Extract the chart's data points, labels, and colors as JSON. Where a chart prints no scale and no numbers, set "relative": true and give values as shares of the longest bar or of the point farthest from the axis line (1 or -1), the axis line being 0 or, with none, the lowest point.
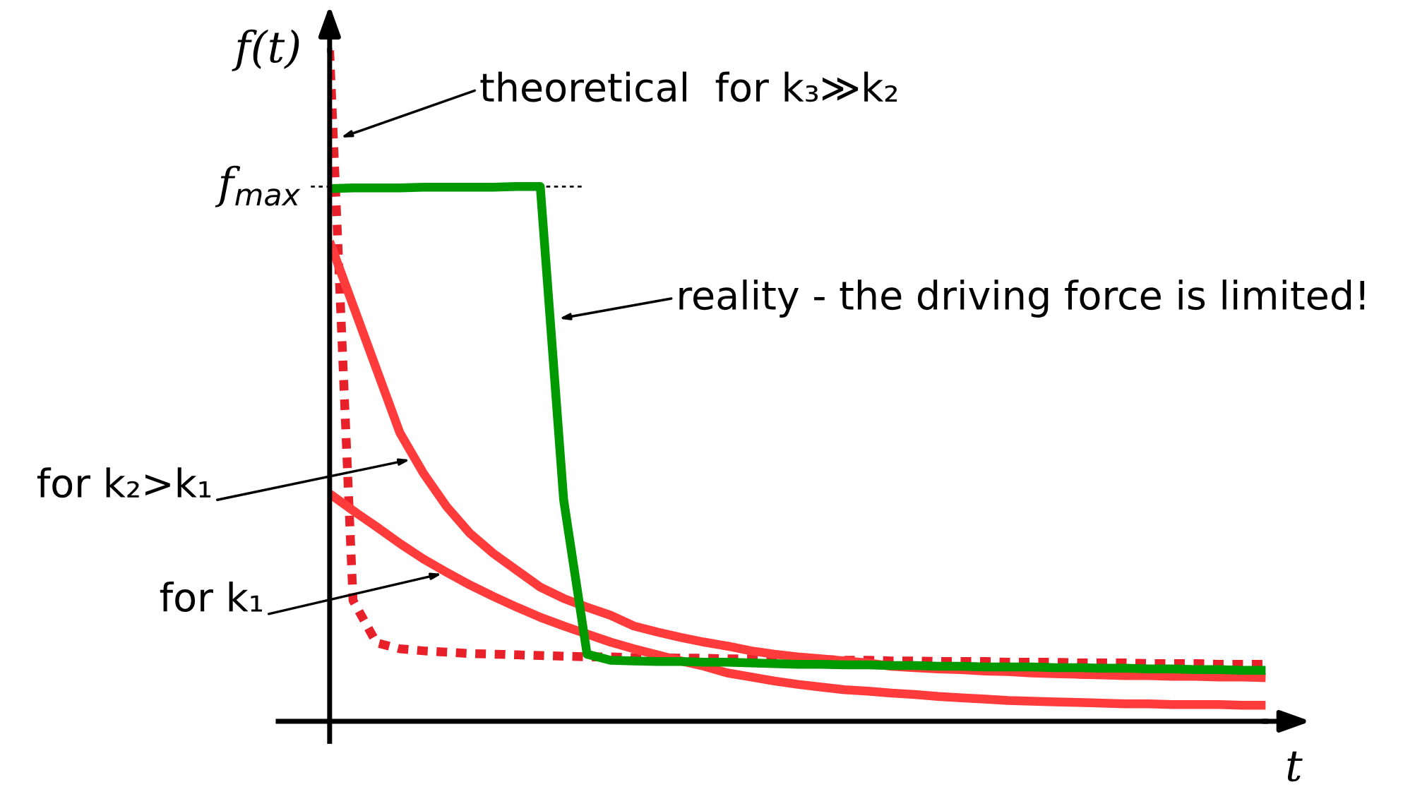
{
  "chart_data": {
    "type": "line",
    "relative": true,
    "xlabel": "t",
    "ylabel": "f(t)",
    "marker": "none",
    "categories": [
      null,
      null,
      null,
      null,
      null,
      null,
      null,
      null,
      null,
      null,
      null,
      null,
      null,
      null,
      null,
      null,
      null,
      null,
      null,
      null,
      null,
      null,
      null,
      null,
      null,
      null,
      null,
      null,
      null,
      null,
      null,
      null,
      null,
      null,
      null,
      null,
      null,
      null,
      null,
      null,
      null
    ],
    "series": [
      {
        "color": "#e8202a",
        "line_style": "dashed",
        "values": [
          1.0,
          0.18,
          0.117,
          0.108,
          0.105,
          0.103,
          0.101,
          0.1,
          0.099,
          0.098,
          0.097,
          0.096,
          0.096,
          0.095,
          0.095,
          0.094,
          0.094,
          0.093,
          0.093,
          0.093,
          0.092,
          0.092,
          0.091,
          0.091,
          0.09,
          0.09,
          0.089,
          0.089,
          0.089,
          0.088,
          0.088,
          0.088,
          0.087,
          0.087,
          0.087,
          0.086,
          0.086,
          0.086,
          0.085,
          0.085,
          0.085
        ]
      },
      {
        "color": "#ff3b3b",
        "line_style": "solid",
        "values": [
          0.715,
          0.62,
          0.525,
          0.43,
          0.37,
          0.32,
          0.28,
          0.25,
          0.225,
          0.2,
          0.183,
          0.17,
          0.158,
          0.142,
          0.133,
          0.125,
          0.118,
          0.112,
          0.105,
          0.1,
          0.096,
          0.093,
          0.09,
          0.087,
          0.082,
          0.08,
          0.078,
          0.077,
          0.075,
          0.074,
          0.072,
          0.071,
          0.07,
          0.069,
          0.068,
          0.068,
          0.067,
          0.067,
          0.066,
          0.066,
          0.065
        ]
      },
      {
        "color": "#ff3b3b",
        "line_style": "solid",
        "values": [
          0.339,
          0.314,
          0.29,
          0.265,
          0.242,
          0.222,
          0.203,
          0.186,
          0.17,
          0.155,
          0.142,
          0.13,
          0.118,
          0.108,
          0.099,
          0.09,
          0.082,
          0.072,
          0.066,
          0.06,
          0.055,
          0.051,
          0.047,
          0.045,
          0.042,
          0.04,
          0.037,
          0.035,
          0.033,
          0.031,
          0.03,
          0.029,
          0.028,
          0.027,
          0.026,
          0.026,
          0.025,
          0.025,
          0.025,
          0.024,
          0.024
        ]
      },
      {
        "color": "#009900",
        "line_style": "solid",
        "values": [
          0.794,
          0.795,
          0.795,
          0.795,
          0.796,
          0.796,
          0.796,
          0.796,
          0.797,
          0.797,
          0.33,
          0.1,
          0.091,
          0.09,
          0.089,
          0.089,
          0.088,
          0.088,
          0.087,
          0.086,
          0.085,
          0.085,
          0.084,
          0.084,
          0.083,
          0.083,
          0.082,
          0.082,
          0.081,
          0.081,
          0.081,
          0.08,
          0.08,
          0.079,
          0.079,
          0.078,
          0.078,
          0.077,
          0.077,
          0.076,
          0.076
        ]
      }
    ],
    "ref_lines": [
      {
        "axis": "y",
        "value": 0.797,
        "label": "f$_{max}$",
        "line_style": "dotted",
        "color": "#000000"
      }
    ],
    "annotations": [
      "theoretical  for k₃≫k₂",
      "reality - the driving force is limited!",
      "for k₂>k₁",
      "for k₁"
    ]
  }
}
